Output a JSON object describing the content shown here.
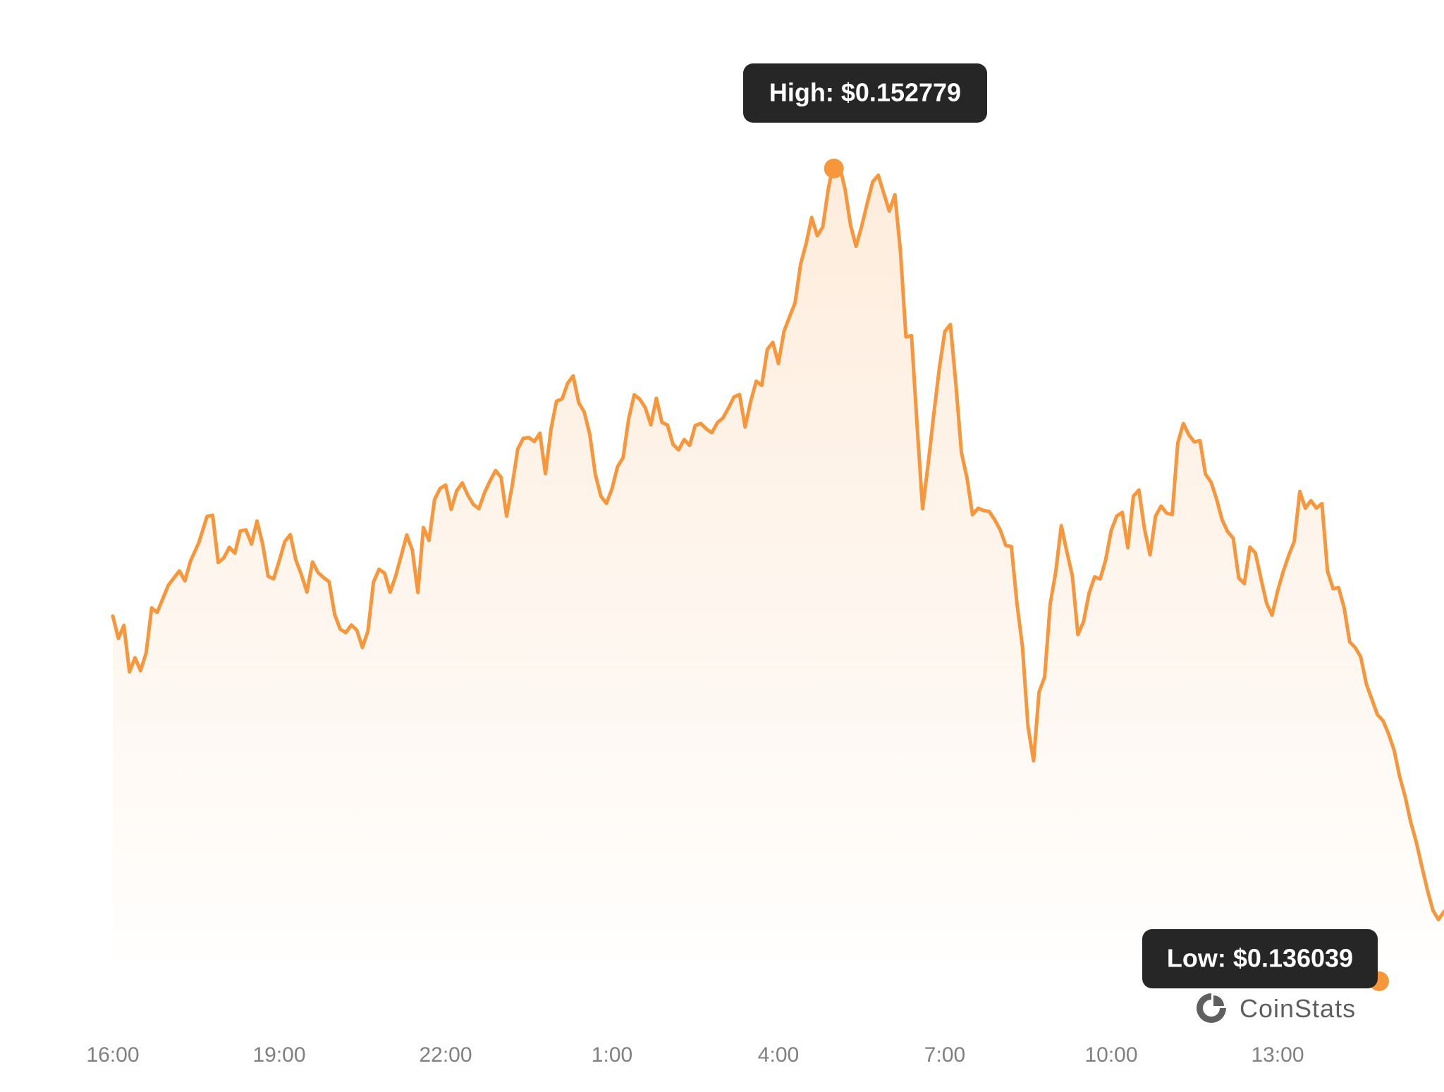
{
  "chart_data": {
    "type": "area",
    "x_unit": "hours since 16:00",
    "xlim": [
      0,
      24
    ],
    "ylim": [
      0.135716,
      0.153279
    ],
    "x_ticks": [
      {
        "x": 0,
        "label": "16:00"
      },
      {
        "x": 3,
        "label": "19:00"
      },
      {
        "x": 6,
        "label": "22:00"
      },
      {
        "x": 9,
        "label": "1:00"
      },
      {
        "x": 12,
        "label": "4:00"
      },
      {
        "x": 15,
        "label": "7:00"
      },
      {
        "x": 18,
        "label": "10:00"
      },
      {
        "x": 21,
        "label": "13:00"
      }
    ],
    "high": {
      "x": 11.35,
      "value": 0.152779,
      "label": "High: $0.152779"
    },
    "low": {
      "x": 22.85,
      "value": 0.136039,
      "label": "Low: $0.136039"
    },
    "series": [
      {
        "color": "#f7963b",
        "points": [
          [
            0.0,
            0.14332
          ],
          [
            0.1,
            0.142852
          ],
          [
            0.2,
            0.143124
          ],
          [
            0.3,
            0.142156
          ],
          [
            0.4,
            0.14245
          ],
          [
            0.5,
            0.14218
          ],
          [
            0.6,
            0.142547
          ],
          [
            0.7,
            0.143486
          ],
          [
            0.8,
            0.143393
          ],
          [
            1.0,
            0.143958
          ],
          [
            1.2,
            0.144258
          ],
          [
            1.3,
            0.14405
          ],
          [
            1.4,
            0.144461
          ],
          [
            1.55,
            0.144843
          ],
          [
            1.7,
            0.145392
          ],
          [
            1.8,
            0.145416
          ],
          [
            1.9,
            0.144431
          ],
          [
            2.0,
            0.144526
          ],
          [
            2.1,
            0.144749
          ],
          [
            2.2,
            0.144627
          ],
          [
            2.3,
            0.145091
          ],
          [
            2.4,
            0.145111
          ],
          [
            2.5,
            0.144817
          ],
          [
            2.6,
            0.145295
          ],
          [
            2.7,
            0.144823
          ],
          [
            2.8,
            0.144145
          ],
          [
            2.9,
            0.144092
          ],
          [
            3.0,
            0.144467
          ],
          [
            3.1,
            0.144869
          ],
          [
            3.2,
            0.145013
          ],
          [
            3.3,
            0.144485
          ],
          [
            3.4,
            0.144177
          ],
          [
            3.5,
            0.143816
          ],
          [
            3.6,
            0.144443
          ],
          [
            3.7,
            0.144221
          ],
          [
            3.8,
            0.14412
          ],
          [
            3.9,
            0.144029
          ],
          [
            4.0,
            0.143348
          ],
          [
            4.1,
            0.143045
          ],
          [
            4.2,
            0.142972
          ],
          [
            4.3,
            0.143132
          ],
          [
            4.4,
            0.143024
          ],
          [
            4.5,
            0.142664
          ],
          [
            4.6,
            0.143011
          ],
          [
            4.7,
            0.144024
          ],
          [
            4.8,
            0.144291
          ],
          [
            4.9,
            0.144208
          ],
          [
            5.0,
            0.143814
          ],
          [
            5.1,
            0.144151
          ],
          [
            5.2,
            0.144578
          ],
          [
            5.3,
            0.145006
          ],
          [
            5.4,
            0.144691
          ],
          [
            5.5,
            0.143809
          ],
          [
            5.6,
            0.14516
          ],
          [
            5.7,
            0.144891
          ],
          [
            5.8,
            0.145741
          ],
          [
            5.9,
            0.145972
          ],
          [
            6.0,
            0.146045
          ],
          [
            6.1,
            0.145538
          ],
          [
            6.2,
            0.145924
          ],
          [
            6.3,
            0.146089
          ],
          [
            6.4,
            0.145834
          ],
          [
            6.5,
            0.145642
          ],
          [
            6.6,
            0.145551
          ],
          [
            6.7,
            0.145881
          ],
          [
            6.8,
            0.146129
          ],
          [
            6.9,
            0.146347
          ],
          [
            7.0,
            0.146204
          ],
          [
            7.1,
            0.145397
          ],
          [
            7.2,
            0.146031
          ],
          [
            7.3,
            0.146793
          ],
          [
            7.4,
            0.147016
          ],
          [
            7.5,
            0.147034
          ],
          [
            7.6,
            0.14695
          ],
          [
            7.7,
            0.147122
          ],
          [
            7.8,
            0.146282
          ],
          [
            7.9,
            0.147213
          ],
          [
            8.0,
            0.147791
          ],
          [
            8.1,
            0.147837
          ],
          [
            8.2,
            0.148164
          ],
          [
            8.3,
            0.148315
          ],
          [
            8.4,
            0.14776
          ],
          [
            8.5,
            0.147558
          ],
          [
            8.6,
            0.147097
          ],
          [
            8.7,
            0.146261
          ],
          [
            8.8,
            0.14581
          ],
          [
            8.9,
            0.145662
          ],
          [
            9.0,
            0.145969
          ],
          [
            9.1,
            0.146428
          ],
          [
            9.2,
            0.146613
          ],
          [
            9.3,
            0.147419
          ],
          [
            9.4,
            0.147924
          ],
          [
            9.5,
            0.147833
          ],
          [
            9.6,
            0.147655
          ],
          [
            9.7,
            0.147299
          ],
          [
            9.8,
            0.147851
          ],
          [
            9.9,
            0.147348
          ],
          [
            10.0,
            0.147293
          ],
          [
            10.1,
            0.146892
          ],
          [
            10.2,
            0.146775
          ],
          [
            10.3,
            0.146992
          ],
          [
            10.4,
            0.14687
          ],
          [
            10.5,
            0.147284
          ],
          [
            10.6,
            0.147326
          ],
          [
            10.7,
            0.147213
          ],
          [
            10.8,
            0.147133
          ],
          [
            10.9,
            0.147345
          ],
          [
            11.0,
            0.14744
          ],
          [
            11.1,
            0.147647
          ],
          [
            11.2,
            0.147881
          ],
          [
            11.3,
            0.147928
          ],
          [
            11.4,
            0.147253
          ],
          [
            11.5,
            0.147785
          ],
          [
            11.6,
            0.148205
          ],
          [
            11.7,
            0.148117
          ],
          [
            11.8,
            0.148868
          ],
          [
            11.9,
            0.149014
          ],
          [
            12.0,
            0.148574
          ],
          [
            12.1,
            0.149242
          ],
          [
            12.2,
            0.149542
          ],
          [
            12.3,
            0.149839
          ],
          [
            12.4,
            0.150643
          ],
          [
            12.5,
            0.151068
          ],
          [
            12.6,
            0.151614
          ],
          [
            12.7,
            0.151233
          ],
          [
            12.8,
            0.151416
          ],
          [
            12.9,
            0.152212
          ],
          [
            13.0,
            0.152779
          ],
          [
            13.1,
            0.1527
          ],
          [
            13.2,
            0.152212
          ],
          [
            13.3,
            0.151456
          ],
          [
            13.4,
            0.151012
          ],
          [
            13.5,
            0.151426
          ],
          [
            13.6,
            0.151905
          ],
          [
            13.7,
            0.152354
          ],
          [
            13.8,
            0.152493
          ],
          [
            13.9,
            0.152117
          ],
          [
            14.0,
            0.151746
          ],
          [
            14.1,
            0.152086
          ],
          [
            14.2,
            0.15091
          ],
          [
            14.3,
            0.149126
          ],
          [
            14.4,
            0.149152
          ],
          [
            14.5,
            0.147291
          ],
          [
            14.6,
            0.145553
          ],
          [
            14.7,
            0.146484
          ],
          [
            14.8,
            0.147513
          ],
          [
            14.9,
            0.148457
          ],
          [
            15.0,
            0.149239
          ],
          [
            15.1,
            0.149386
          ],
          [
            15.2,
            0.148146
          ],
          [
            15.3,
            0.146717
          ],
          [
            15.4,
            0.14619
          ],
          [
            15.5,
            0.145426
          ],
          [
            15.6,
            0.145561
          ],
          [
            15.7,
            0.145515
          ],
          [
            15.8,
            0.145495
          ],
          [
            15.9,
            0.145321
          ],
          [
            16.0,
            0.145108
          ],
          [
            16.1,
            0.144786
          ],
          [
            16.2,
            0.144765
          ],
          [
            16.3,
            0.143585
          ],
          [
            16.4,
            0.142676
          ],
          [
            16.5,
            0.141017
          ],
          [
            16.6,
            0.140306
          ],
          [
            16.7,
            0.141736
          ],
          [
            16.8,
            0.142052
          ],
          [
            16.9,
            0.143573
          ],
          [
            17.0,
            0.144233
          ],
          [
            17.1,
            0.145201
          ],
          [
            17.2,
            0.144657
          ],
          [
            17.3,
            0.144155
          ],
          [
            17.4,
            0.142932
          ],
          [
            17.5,
            0.143196
          ],
          [
            17.6,
            0.143788
          ],
          [
            17.7,
            0.144132
          ],
          [
            17.8,
            0.14409
          ],
          [
            17.9,
            0.144484
          ],
          [
            18.0,
            0.145101
          ],
          [
            18.1,
            0.1454
          ],
          [
            18.2,
            0.145476
          ],
          [
            18.3,
            0.144739
          ],
          [
            18.4,
            0.145814
          ],
          [
            18.5,
            0.145942
          ],
          [
            18.6,
            0.14513
          ],
          [
            18.7,
            0.144592
          ],
          [
            18.8,
            0.1454
          ],
          [
            18.9,
            0.145607
          ],
          [
            19.0,
            0.145459
          ],
          [
            19.1,
            0.14543
          ],
          [
            19.2,
            0.146922
          ],
          [
            19.3,
            0.147324
          ],
          [
            19.4,
            0.147089
          ],
          [
            19.5,
            0.146942
          ],
          [
            19.6,
            0.146969
          ],
          [
            19.7,
            0.146273
          ],
          [
            19.8,
            0.146105
          ],
          [
            19.9,
            0.145751
          ],
          [
            20.0,
            0.145322
          ],
          [
            20.1,
            0.145072
          ],
          [
            20.2,
            0.144936
          ],
          [
            20.3,
            0.144111
          ],
          [
            20.4,
            0.143993
          ],
          [
            20.5,
            0.144755
          ],
          [
            20.6,
            0.144628
          ],
          [
            20.7,
            0.144098
          ],
          [
            20.8,
            0.143588
          ],
          [
            20.9,
            0.143336
          ],
          [
            21.0,
            0.143839
          ],
          [
            21.1,
            0.14424
          ],
          [
            21.2,
            0.144576
          ],
          [
            21.3,
            0.144872
          ],
          [
            21.4,
            0.14591
          ],
          [
            21.5,
            0.145563
          ],
          [
            21.6,
            0.14572
          ],
          [
            21.7,
            0.145565
          ],
          [
            21.8,
            0.145658
          ],
          [
            21.9,
            0.144251
          ],
          [
            22.0,
            0.143887
          ],
          [
            22.1,
            0.143911
          ],
          [
            22.2,
            0.143487
          ],
          [
            22.3,
            0.14278
          ],
          [
            22.4,
            0.142662
          ],
          [
            22.5,
            0.142465
          ],
          [
            22.6,
            0.1419
          ],
          [
            22.7,
            0.141585
          ],
          [
            22.8,
            0.141264
          ],
          [
            22.9,
            0.14114
          ],
          [
            23.0,
            0.140869
          ],
          [
            23.1,
            0.140529
          ],
          [
            23.2,
            0.139978
          ],
          [
            23.3,
            0.13956
          ],
          [
            23.4,
            0.13903
          ],
          [
            23.5,
            0.138612
          ],
          [
            23.6,
            0.13811
          ],
          [
            23.7,
            0.137619
          ],
          [
            23.8,
            0.137195
          ],
          [
            23.9,
            0.137
          ],
          [
            24.0,
            0.137168
          ]
        ]
      }
    ]
  },
  "brand": {
    "name": "CoinStats",
    "icon": "coinstats-logo-icon"
  }
}
